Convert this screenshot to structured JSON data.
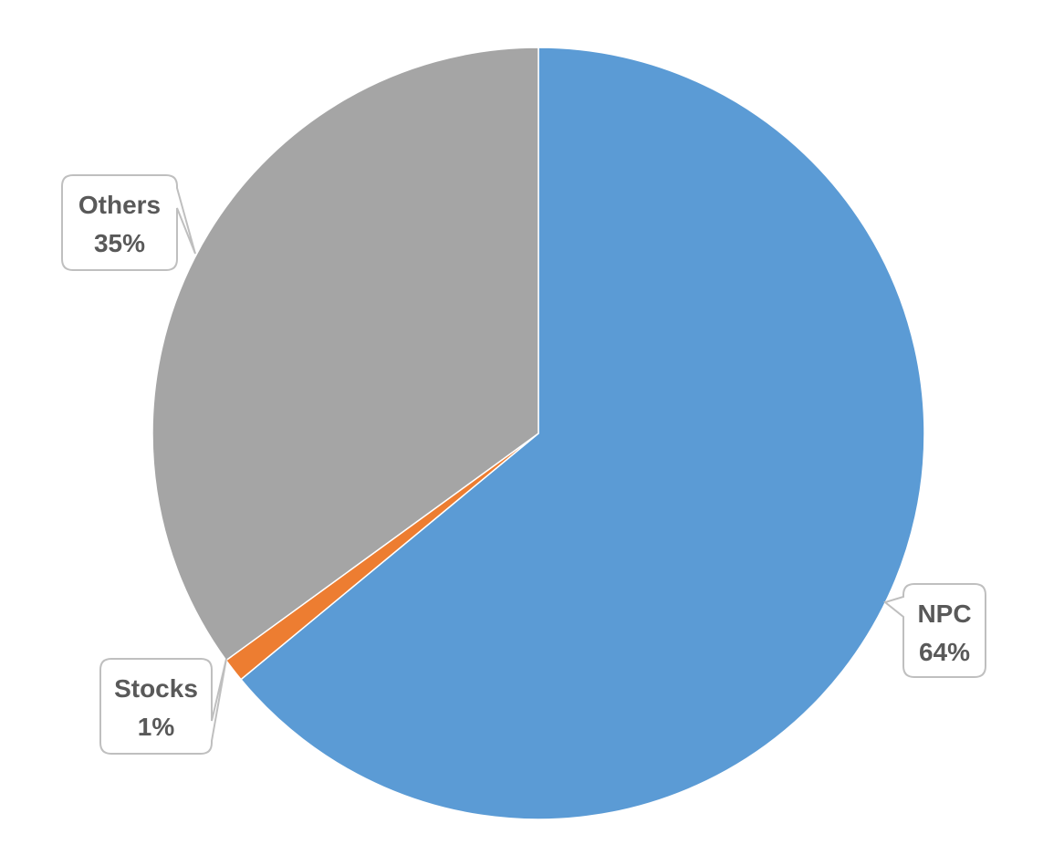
{
  "chart_data": {
    "type": "pie",
    "title": "",
    "legend": "none",
    "start_angle_deg": 0,
    "direction": "clockwise",
    "slices": [
      {
        "label": "NPC",
        "value": 64,
        "display": "64%",
        "color": "#5b9bd5"
      },
      {
        "label": "Stocks",
        "value": 1,
        "display": "1%",
        "color": "#ed7d31"
      },
      {
        "label": "Others",
        "value": 35,
        "display": "35%",
        "color": "#a5a5a5"
      }
    ]
  }
}
